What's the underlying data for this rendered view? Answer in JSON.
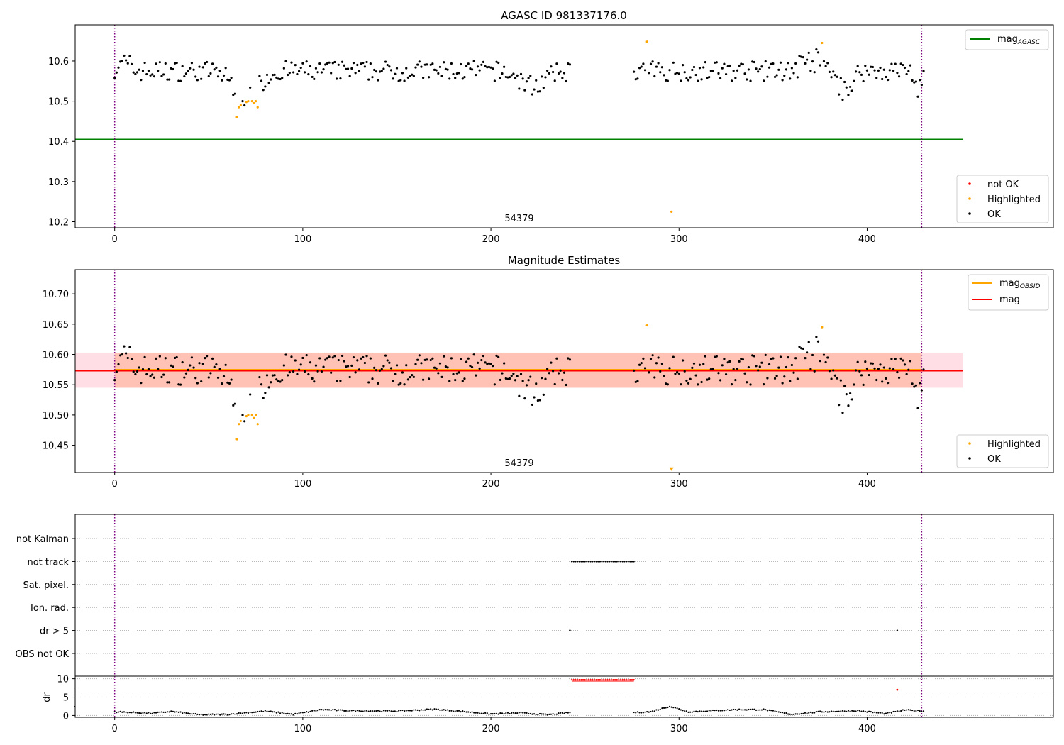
{
  "chart_data": [
    {
      "type": "scatter",
      "title": "AGASC ID 981337176.0",
      "annotation": "54379",
      "xlim": [
        -21,
        499
      ],
      "ylim": [
        10.185,
        10.69
      ],
      "xticks": [
        0,
        100,
        200,
        300,
        400
      ],
      "yticks": [
        10.2,
        10.3,
        10.4,
        10.5,
        10.6
      ],
      "ytick_labels": [
        "10.2",
        "10.3",
        "10.4",
        "10.5",
        "10.6"
      ],
      "vlines": [
        0,
        429
      ],
      "hline": {
        "name": "magAGASC",
        "value": 10.405,
        "x_range": [
          -21,
          451
        ],
        "color": "#008000"
      },
      "line_legend": [
        {
          "name": "mag",
          "sub": "AGASC",
          "color": "#008000"
        }
      ],
      "point_legend": [
        {
          "name": "not OK",
          "color": "#ff0000"
        },
        {
          "name": "Highlighted",
          "color": "#ffa500"
        },
        {
          "name": "OK",
          "color": "#000000"
        }
      ],
      "highlighted": {
        "x": [
          65,
          66,
          67,
          70,
          71,
          73,
          74,
          75,
          76,
          283,
          296,
          376
        ],
        "y": [
          10.46,
          10.485,
          10.49,
          10.498,
          10.5,
          10.5,
          10.495,
          10.5,
          10.485,
          10.648,
          10.225,
          10.645
        ]
      },
      "ok_series": {
        "segments": [
          [
            0,
            242
          ],
          [
            276,
            430
          ]
        ],
        "mean": 10.575,
        "amplitude": 0.025,
        "dips": [
          {
            "center": 70,
            "width": 9,
            "depth": 0.065
          },
          {
            "center": 222,
            "width": 10,
            "depth": 0.035
          },
          {
            "center": 388,
            "width": 5,
            "depth": 0.05
          },
          {
            "center": 427,
            "width": 2,
            "depth": 0.045
          }
        ],
        "bumps": [
          {
            "center": 5,
            "width": 4,
            "height": 0.04
          },
          {
            "center": 370,
            "width": 8,
            "height": 0.045
          }
        ]
      }
    },
    {
      "type": "scatter",
      "title": "Magnitude Estimates",
      "annotation": "54379",
      "xlim": [
        -21,
        499
      ],
      "ylim": [
        10.405,
        10.74
      ],
      "xticks": [
        0,
        100,
        200,
        300,
        400
      ],
      "yticks": [
        10.45,
        10.5,
        10.55,
        10.6,
        10.65,
        10.7
      ],
      "ytick_labels": [
        "10.45",
        "10.50",
        "10.55",
        "10.60",
        "10.65",
        "10.70"
      ],
      "vlines": [
        0,
        429
      ],
      "bands": [
        {
          "name": "mag band",
          "y": [
            10.545,
            10.603
          ],
          "x_range": [
            -21,
            451
          ],
          "color": "#ffc0cb"
        },
        {
          "name": "magOBSID band",
          "y": [
            10.545,
            10.603
          ],
          "x_range": [
            0,
            429
          ],
          "color": "#ffa07a"
        }
      ],
      "hlines": [
        {
          "name": "magOBSID",
          "value": 10.575,
          "x_range": [
            0,
            429
          ],
          "color": "#ffa500"
        },
        {
          "name": "mag",
          "value": 10.573,
          "x_range": [
            -21,
            451
          ],
          "color": "#ff0000"
        }
      ],
      "line_legend": [
        {
          "name": "mag",
          "sub": "OBSID",
          "color": "#ffa500"
        },
        {
          "name": "mag",
          "sub": "",
          "color": "#ff0000"
        }
      ],
      "point_legend": [
        {
          "name": "Highlighted",
          "color": "#ffa500"
        },
        {
          "name": "OK",
          "color": "#000000"
        }
      ],
      "highlighted": {
        "x": [
          65,
          66,
          67,
          70,
          71,
          73,
          74,
          75,
          76,
          283,
          376
        ],
        "y": [
          10.46,
          10.485,
          10.49,
          10.498,
          10.5,
          10.5,
          10.495,
          10.5,
          10.485,
          10.648,
          10.645
        ]
      },
      "offscale_marker": {
        "x": 296,
        "y": 10.41,
        "color": "#ffa500"
      }
    },
    {
      "type": "scatter",
      "title": "",
      "xlim": [
        -21,
        499
      ],
      "xticks": [
        0,
        100,
        200,
        300,
        400
      ],
      "vlines": [
        0,
        429
      ],
      "flag_rows": [
        "OBS not OK",
        "dr > 5",
        "Ion. rad.",
        "Sat. pixel.",
        "not track",
        "not Kalman"
      ],
      "flags": {
        "not track": {
          "x_range": [
            243,
            276
          ]
        },
        "dr > 5": {
          "x": [
            242,
            416
          ]
        }
      },
      "dr_panel": {
        "ylabel": "dr",
        "ylim": [
          -0.5,
          10.7
        ],
        "yticks": [
          0,
          5,
          10
        ],
        "ytick_labels": [
          "0",
          "5",
          "10"
        ],
        "high_points": {
          "x_range": [
            243,
            276
          ],
          "value": 9.7,
          "color": "#ff0000"
        },
        "extra_red": {
          "x": 416,
          "value": 7.0,
          "color": "#ff0000"
        },
        "baseline": [
          {
            "x": 0,
            "y": 1.0
          },
          {
            "x": 20,
            "y": 0.6
          },
          {
            "x": 30,
            "y": 1.1
          },
          {
            "x": 45,
            "y": 0.2
          },
          {
            "x": 60,
            "y": 0.3
          },
          {
            "x": 80,
            "y": 1.2
          },
          {
            "x": 95,
            "y": 0.3
          },
          {
            "x": 110,
            "y": 1.6
          },
          {
            "x": 125,
            "y": 1.3
          },
          {
            "x": 150,
            "y": 1.2
          },
          {
            "x": 170,
            "y": 1.7
          },
          {
            "x": 185,
            "y": 1.1
          },
          {
            "x": 200,
            "y": 0.4
          },
          {
            "x": 215,
            "y": 0.7
          },
          {
            "x": 230,
            "y": 0.2
          },
          {
            "x": 242,
            "y": 0.8
          },
          {
            "x": 276,
            "y": 0.8
          },
          {
            "x": 285,
            "y": 1.0
          },
          {
            "x": 295,
            "y": 2.5
          },
          {
            "x": 305,
            "y": 1.0
          },
          {
            "x": 330,
            "y": 1.6
          },
          {
            "x": 345,
            "y": 1.6
          },
          {
            "x": 360,
            "y": 0.3
          },
          {
            "x": 375,
            "y": 1.0
          },
          {
            "x": 395,
            "y": 1.3
          },
          {
            "x": 410,
            "y": 0.5
          },
          {
            "x": 420,
            "y": 1.5
          },
          {
            "x": 430,
            "y": 1.2
          }
        ]
      }
    }
  ]
}
